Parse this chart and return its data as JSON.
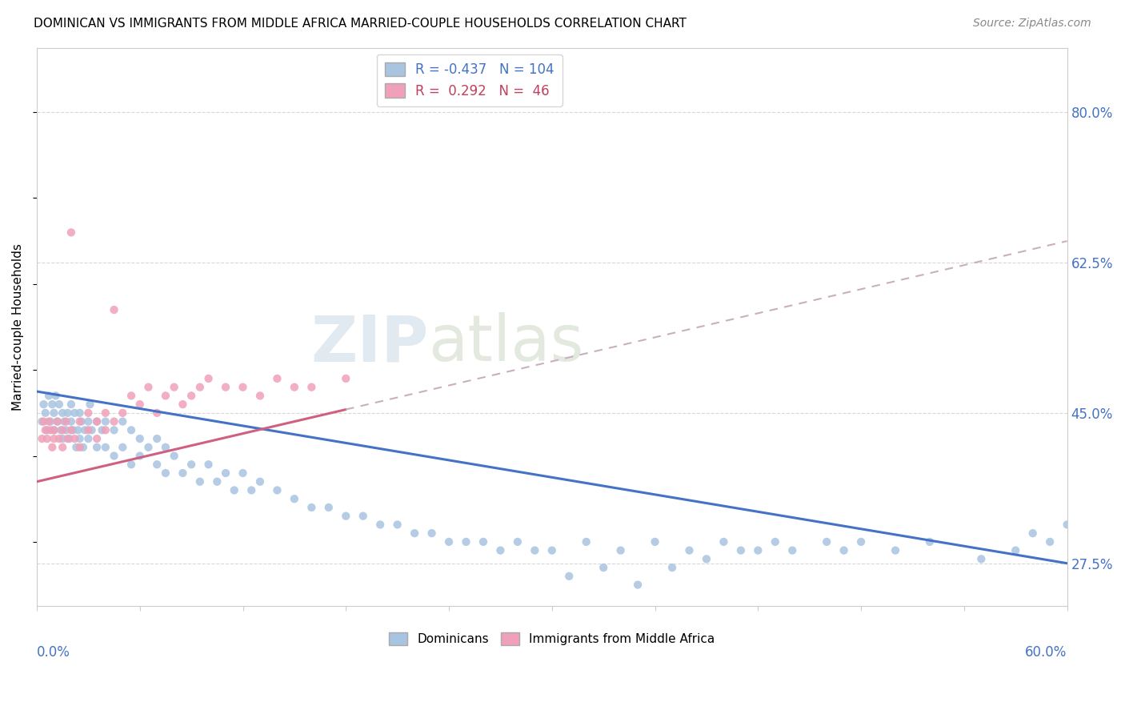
{
  "title": "DOMINICAN VS IMMIGRANTS FROM MIDDLE AFRICA MARRIED-COUPLE HOUSEHOLDS CORRELATION CHART",
  "source": "Source: ZipAtlas.com",
  "ylabel": "Married-couple Households",
  "ylabel_ticks": [
    27.5,
    45.0,
    62.5,
    80.0
  ],
  "ylabel_tick_labels": [
    "27.5%",
    "45.0%",
    "62.5%",
    "80.0%"
  ],
  "watermark": "ZIPAtlas",
  "dominicans_color": "#a8c4e0",
  "dominicans_line_color": "#4472c4",
  "immigrants_color": "#f0a0b8",
  "immigrants_line_color": "#d06080",
  "immigrants_line_dashed_color": "#c8a0b0",
  "xlim": [
    0.0,
    60.0
  ],
  "ylim": [
    22.5,
    87.5
  ],
  "title_fontsize": 11,
  "source_fontsize": 10,
  "axis_label_fontsize": 11,
  "tick_fontsize": 12,
  "background_color": "#ffffff",
  "grid_color": "#d8d8d8",
  "border_color": "#cccccc",
  "dom_x": [
    0.3,
    0.4,
    0.5,
    0.6,
    0.7,
    0.8,
    0.9,
    1.0,
    1.0,
    1.1,
    1.2,
    1.3,
    1.4,
    1.5,
    1.5,
    1.6,
    1.7,
    1.8,
    1.9,
    2.0,
    2.0,
    2.1,
    2.2,
    2.3,
    2.4,
    2.5,
    2.5,
    2.6,
    2.7,
    2.8,
    3.0,
    3.0,
    3.1,
    3.2,
    3.5,
    3.5,
    3.8,
    4.0,
    4.0,
    4.5,
    4.5,
    5.0,
    5.0,
    5.5,
    5.5,
    6.0,
    6.0,
    6.5,
    7.0,
    7.0,
    7.5,
    7.5,
    8.0,
    8.5,
    9.0,
    9.5,
    10.0,
    10.5,
    11.0,
    11.5,
    12.0,
    12.5,
    13.0,
    14.0,
    15.0,
    16.0,
    17.0,
    18.0,
    19.0,
    20.0,
    21.0,
    22.0,
    23.0,
    24.0,
    25.0,
    26.0,
    27.0,
    28.0,
    29.0,
    30.0,
    32.0,
    34.0,
    36.0,
    38.0,
    40.0,
    41.0,
    43.0,
    44.0,
    46.0,
    47.0,
    48.0,
    50.0,
    52.0,
    55.0,
    57.0,
    58.0,
    59.0,
    60.0,
    42.0,
    39.0,
    37.0,
    33.0,
    31.0,
    35.0
  ],
  "dom_y": [
    44.0,
    46.0,
    45.0,
    43.0,
    47.0,
    44.0,
    46.0,
    45.0,
    43.0,
    47.0,
    44.0,
    46.0,
    43.0,
    45.0,
    42.0,
    44.0,
    43.0,
    45.0,
    42.0,
    44.0,
    46.0,
    43.0,
    45.0,
    41.0,
    43.0,
    45.0,
    42.0,
    44.0,
    41.0,
    43.0,
    44.0,
    42.0,
    46.0,
    43.0,
    44.0,
    41.0,
    43.0,
    44.0,
    41.0,
    43.0,
    40.0,
    44.0,
    41.0,
    43.0,
    39.0,
    42.0,
    40.0,
    41.0,
    42.0,
    39.0,
    41.0,
    38.0,
    40.0,
    38.0,
    39.0,
    37.0,
    39.0,
    37.0,
    38.0,
    36.0,
    38.0,
    36.0,
    37.0,
    36.0,
    35.0,
    34.0,
    34.0,
    33.0,
    33.0,
    32.0,
    32.0,
    31.0,
    31.0,
    30.0,
    30.0,
    30.0,
    29.0,
    30.0,
    29.0,
    29.0,
    30.0,
    29.0,
    30.0,
    29.0,
    30.0,
    29.0,
    30.0,
    29.0,
    30.0,
    29.0,
    30.0,
    29.0,
    30.0,
    28.0,
    29.0,
    31.0,
    30.0,
    32.0,
    29.0,
    28.0,
    27.0,
    27.0,
    26.0,
    25.0
  ],
  "imm_x": [
    0.3,
    0.4,
    0.5,
    0.6,
    0.7,
    0.8,
    0.9,
    1.0,
    1.0,
    1.2,
    1.3,
    1.5,
    1.5,
    1.7,
    1.8,
    2.0,
    2.0,
    2.2,
    2.5,
    2.5,
    3.0,
    3.0,
    3.5,
    3.5,
    4.0,
    4.0,
    4.5,
    4.5,
    5.0,
    5.5,
    6.0,
    6.5,
    7.0,
    7.5,
    8.0,
    8.5,
    9.0,
    9.5,
    10.0,
    11.0,
    12.0,
    13.0,
    14.0,
    15.0,
    16.0,
    18.0
  ],
  "imm_y": [
    42.0,
    44.0,
    43.0,
    42.0,
    44.0,
    43.0,
    41.0,
    43.0,
    42.0,
    44.0,
    42.0,
    43.0,
    41.0,
    44.0,
    42.0,
    66.0,
    43.0,
    42.0,
    44.0,
    41.0,
    43.0,
    45.0,
    44.0,
    42.0,
    45.0,
    43.0,
    57.0,
    44.0,
    45.0,
    47.0,
    46.0,
    48.0,
    45.0,
    47.0,
    48.0,
    46.0,
    47.0,
    48.0,
    49.0,
    48.0,
    48.0,
    47.0,
    49.0,
    48.0,
    48.0,
    49.0
  ],
  "dom_trend_x0": 0.0,
  "dom_trend_y0": 47.5,
  "dom_trend_x1": 60.0,
  "dom_trend_y1": 27.5,
  "imm_trend_x0": 0.0,
  "imm_trend_y0": 37.0,
  "imm_trend_x1": 60.0,
  "imm_trend_y1": 65.0,
  "imm_solid_x0": 0.0,
  "imm_solid_x1": 18.0
}
